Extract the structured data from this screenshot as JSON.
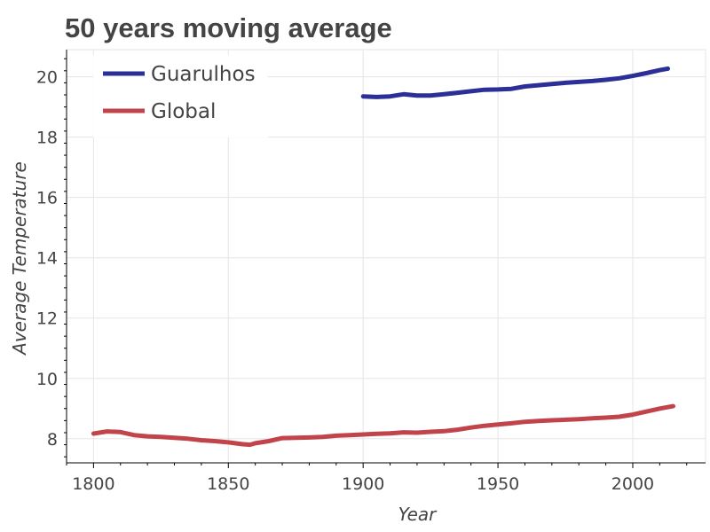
{
  "chart_data": {
    "type": "line",
    "title": "50 years moving average",
    "xlabel": "Year",
    "ylabel": "Average Temperature",
    "xlim": [
      1790,
      2027
    ],
    "ylim": [
      7.2,
      20.9
    ],
    "x_ticks": [
      1800,
      1850,
      1900,
      1950,
      2000
    ],
    "y_ticks": [
      8,
      10,
      12,
      14,
      16,
      18,
      20
    ],
    "grid": true,
    "legend_position": "top-left",
    "series": [
      {
        "name": "Guarulhos",
        "color": "#2c2f96",
        "x": [
          1900,
          1905,
          1910,
          1915,
          1920,
          1925,
          1930,
          1935,
          1940,
          1945,
          1950,
          1955,
          1960,
          1965,
          1970,
          1975,
          1980,
          1985,
          1990,
          1995,
          2000,
          2005,
          2010,
          2013
        ],
        "y": [
          19.35,
          19.33,
          19.35,
          19.42,
          19.38,
          19.38,
          19.42,
          19.47,
          19.52,
          19.57,
          19.58,
          19.6,
          19.68,
          19.72,
          19.76,
          19.8,
          19.83,
          19.86,
          19.9,
          19.95,
          20.03,
          20.12,
          20.22,
          20.27
        ]
      },
      {
        "name": "Global",
        "color": "#c1444b",
        "x": [
          1800,
          1805,
          1810,
          1815,
          1820,
          1825,
          1830,
          1835,
          1840,
          1845,
          1850,
          1855,
          1858,
          1860,
          1865,
          1870,
          1875,
          1880,
          1885,
          1890,
          1895,
          1900,
          1905,
          1910,
          1915,
          1920,
          1925,
          1930,
          1935,
          1940,
          1945,
          1950,
          1955,
          1960,
          1965,
          1970,
          1975,
          1980,
          1985,
          1990,
          1995,
          2000,
          2005,
          2010,
          2015
        ],
        "y": [
          8.17,
          8.24,
          8.22,
          8.12,
          8.08,
          8.06,
          8.03,
          8.0,
          7.95,
          7.92,
          7.88,
          7.82,
          7.8,
          7.85,
          7.92,
          8.02,
          8.03,
          8.04,
          8.06,
          8.1,
          8.12,
          8.14,
          8.16,
          8.18,
          8.21,
          8.2,
          8.23,
          8.25,
          8.3,
          8.37,
          8.43,
          8.47,
          8.51,
          8.56,
          8.59,
          8.61,
          8.63,
          8.65,
          8.68,
          8.7,
          8.73,
          8.8,
          8.9,
          9.0,
          9.08
        ]
      }
    ]
  }
}
